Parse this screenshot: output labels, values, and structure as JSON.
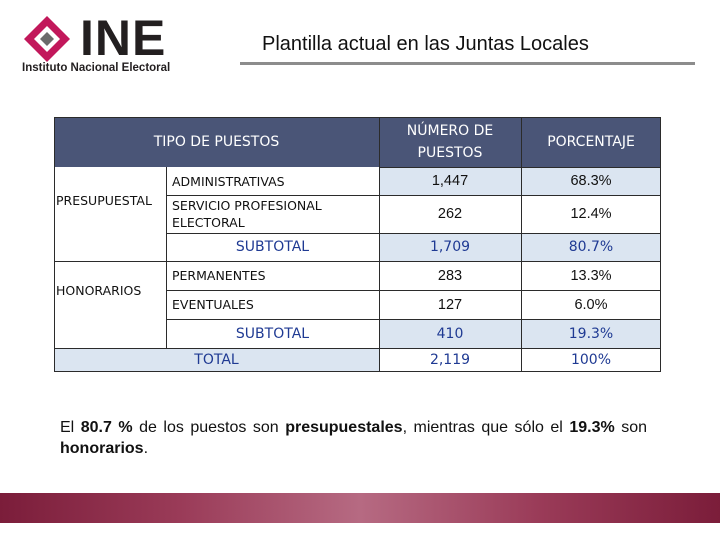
{
  "header": {
    "logo_text": "INE",
    "logo_subtitle": "Instituto Nacional Electoral",
    "title": "Plantilla actual en las Juntas Locales"
  },
  "colors": {
    "header_bg": "#4a5577",
    "highlight_bg": "#dbe5f1",
    "subtotal_text": "#1f3a93",
    "logo_accent": "#c2185b",
    "footer_band": "#8b2a4a"
  },
  "table": {
    "headers": {
      "tipo": "TIPO DE PUESTOS",
      "numero": "NÚMERO DE PUESTOS",
      "porcentaje": "PORCENTAJE"
    },
    "presupuestal": {
      "label": "PRESUPUESTAL",
      "rows": [
        {
          "tipo": "ADMINISTRATIVAS",
          "numero": "1,447",
          "porcentaje": "68.3%"
        },
        {
          "tipo": "SERVICIO PROFESIONAL ELECTORAL",
          "numero": "262",
          "porcentaje": "12.4%"
        }
      ],
      "subtotal": {
        "label": "SUBTOTAL",
        "numero": "1,709",
        "porcentaje": "80.7%"
      }
    },
    "honorarios": {
      "label": "HONORARIOS",
      "rows": [
        {
          "tipo": "PERMANENTES",
          "numero": "283",
          "porcentaje": "13.3%"
        },
        {
          "tipo": "EVENTUALES",
          "numero": "127",
          "porcentaje": "6.0%"
        }
      ],
      "subtotal": {
        "label": "SUBTOTAL",
        "numero": "410",
        "porcentaje": "19.3%"
      }
    },
    "total": {
      "label": "TOTAL",
      "numero": "2,119",
      "porcentaje": "100%"
    }
  },
  "note": {
    "p1": "El ",
    "pct_presupuestal": "80.7 %",
    "p2": " de los puestos son ",
    "presupuestales": "presupuestales",
    "p3": ", mientras que sólo el ",
    "pct_honorarios": "19.3%",
    "p4": " son ",
    "honorarios": "honorarios",
    "p5": "."
  }
}
